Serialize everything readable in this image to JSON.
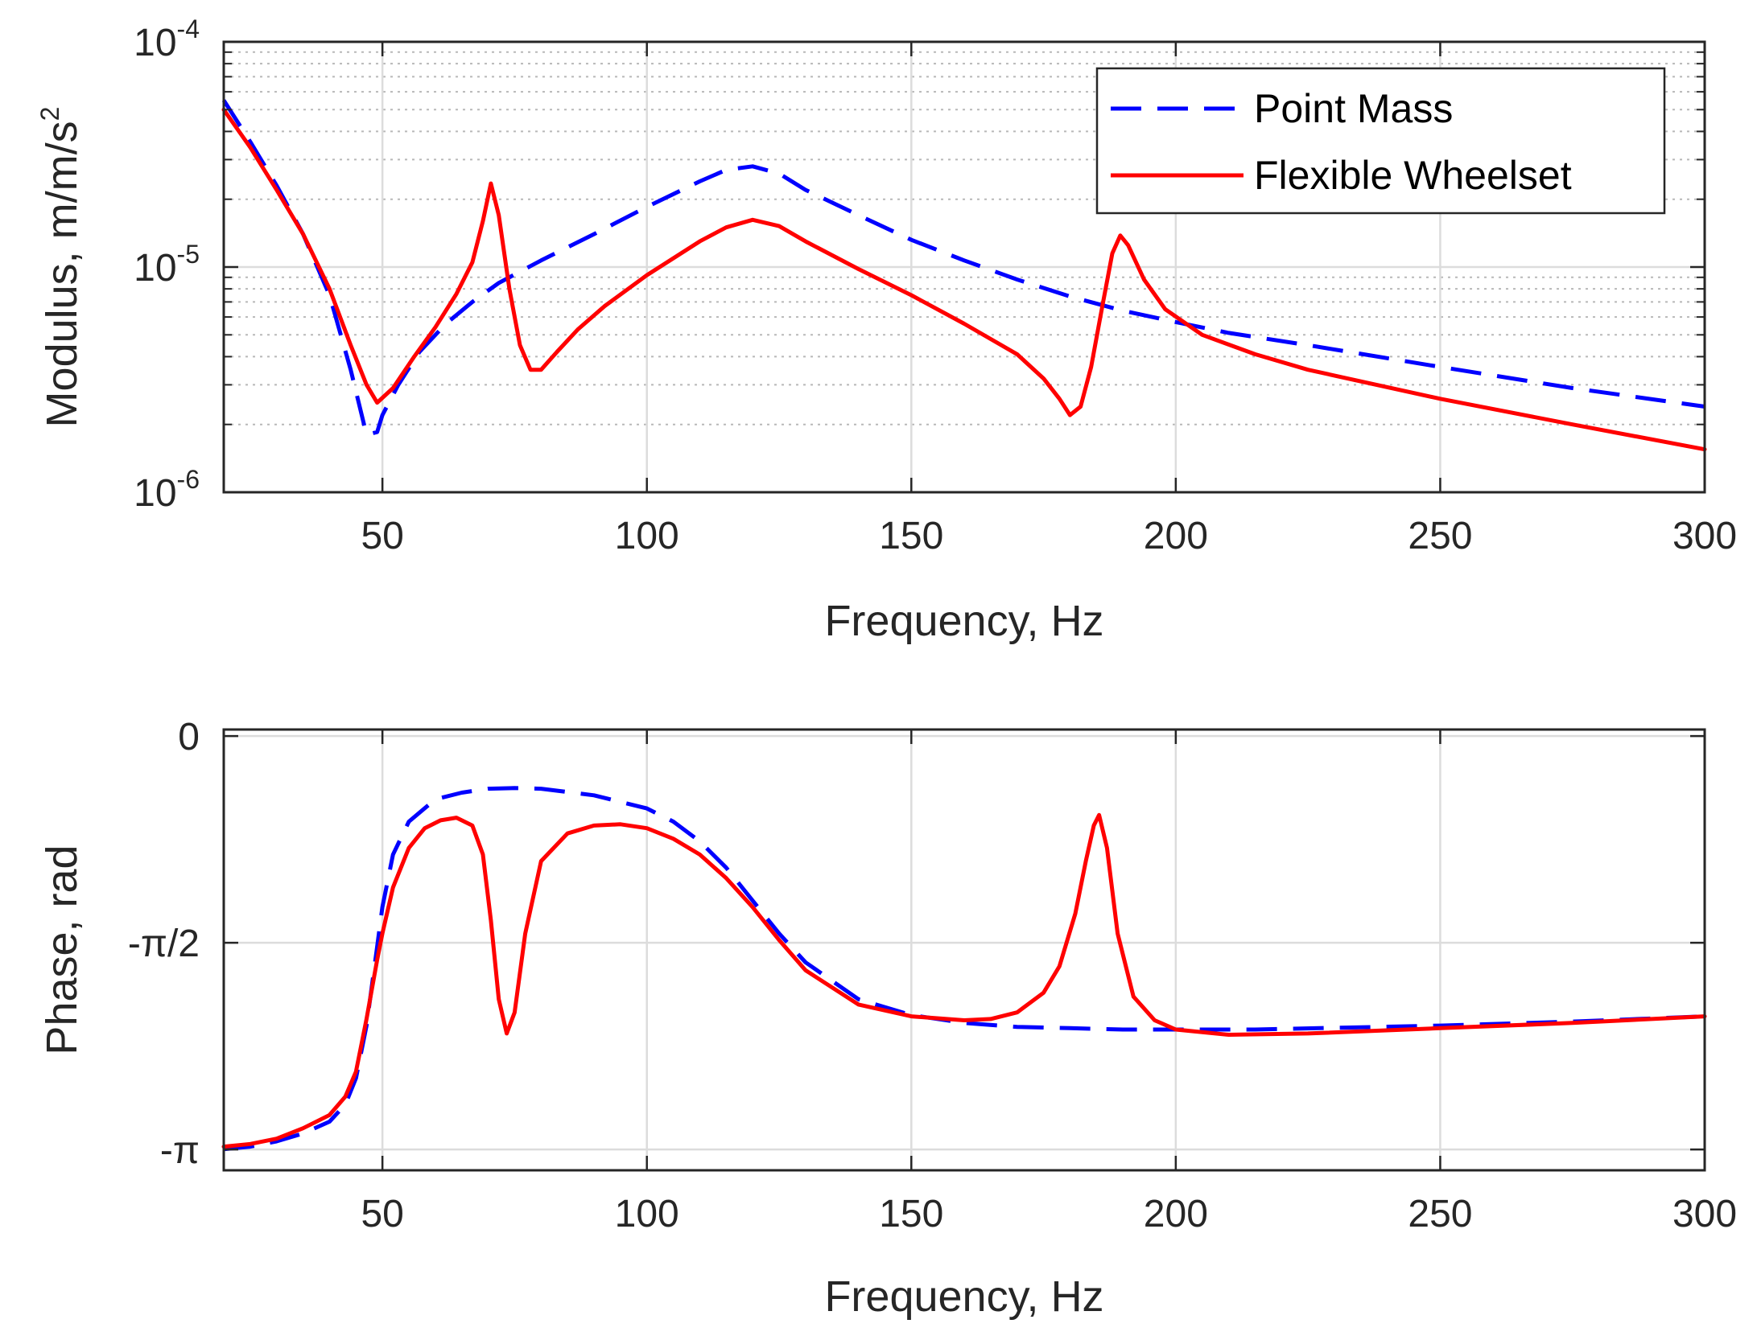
{
  "chart_data": [
    {
      "type": "line",
      "xscale": "linear",
      "yscale": "log",
      "xlabel": "Frequency, Hz",
      "ylabel": "Modulus, m/m/s",
      "ylabel_exponent": "2",
      "xlim": [
        20,
        300
      ],
      "ylim": [
        1e-06,
        0.0001
      ],
      "xticks": [
        50,
        100,
        150,
        200,
        250,
        300
      ],
      "yticks": [
        {
          "value": 1e-06,
          "base": "10",
          "exp": "-6"
        },
        {
          "value": 1e-05,
          "base": "10",
          "exp": "-5"
        },
        {
          "value": 0.0001,
          "base": "10",
          "exp": "-4"
        }
      ],
      "grid": true,
      "minor_grid": true,
      "legend": {
        "position": "top-right",
        "entries": [
          "Point Mass",
          "Flexible Wheelset"
        ]
      },
      "series": [
        {
          "name": "Point Mass",
          "color": "#0000ff",
          "style": "dashed",
          "x": [
            20,
            25,
            30,
            35,
            40,
            44,
            47,
            49,
            50,
            53,
            57,
            62,
            67,
            72,
            80,
            90,
            100,
            110,
            115,
            120,
            125,
            130,
            140,
            150,
            160,
            170,
            180,
            190,
            200,
            210,
            225,
            250,
            275,
            300
          ],
          "y": [
            5.5e-05,
            3.6e-05,
            2.3e-05,
            1.4e-05,
            7.5e-06,
            3.5e-06,
            1.8e-06,
            1.85e-06,
            2.2e-06,
            3e-06,
            4.2e-06,
            5.6e-06,
            7e-06,
            8.5e-06,
            1.07e-05,
            1.4e-05,
            1.85e-05,
            2.4e-05,
            2.7e-05,
            2.8e-05,
            2.6e-05,
            2.2e-05,
            1.7e-05,
            1.32e-05,
            1.07e-05,
            8.8e-06,
            7.4e-06,
            6.4e-06,
            5.7e-06,
            5.1e-06,
            4.5e-06,
            3.6e-06,
            2.9e-06,
            2.4e-06
          ]
        },
        {
          "name": "Flexible Wheelset",
          "color": "#ff0000",
          "style": "solid",
          "x": [
            20,
            25,
            30,
            35,
            40,
            44,
            47,
            49,
            52,
            56,
            60,
            64,
            67,
            69,
            70.5,
            72,
            74,
            76,
            78,
            80,
            83,
            87,
            92,
            100,
            110,
            115,
            120,
            125,
            130,
            140,
            150,
            160,
            170,
            175,
            178,
            180,
            182,
            184,
            186,
            188,
            189.5,
            191,
            194,
            198,
            205,
            215,
            225,
            250,
            275,
            300
          ],
          "y": [
            5e-05,
            3.4e-05,
            2.2e-05,
            1.4e-05,
            8e-06,
            4.5e-06,
            3e-06,
            2.5e-06,
            2.9e-06,
            4e-06,
            5.4e-06,
            7.6e-06,
            1.05e-05,
            1.6e-05,
            2.35e-05,
            1.7e-05,
            8e-06,
            4.5e-06,
            3.5e-06,
            3.5e-06,
            4.2e-06,
            5.3e-06,
            6.7e-06,
            9.2e-06,
            1.3e-05,
            1.5e-05,
            1.62e-05,
            1.52e-05,
            1.3e-05,
            9.8e-06,
            7.5e-06,
            5.6e-06,
            4.1e-06,
            3.2e-06,
            2.6e-06,
            2.2e-06,
            2.4e-06,
            3.6e-06,
            6.5e-06,
            1.15e-05,
            1.38e-05,
            1.25e-05,
            8.8e-06,
            6.5e-06,
            5e-06,
            4.1e-06,
            3.5e-06,
            2.6e-06,
            2e-06,
            1.55e-06
          ]
        }
      ]
    },
    {
      "type": "line",
      "xscale": "linear",
      "yscale": "linear",
      "xlabel": "Frequency, Hz",
      "ylabel": "Phase, rad",
      "xlim": [
        20,
        300
      ],
      "ylim": [
        -3.3,
        0.05
      ],
      "xticks": [
        50,
        100,
        150,
        200,
        250,
        300
      ],
      "yticks": [
        {
          "value": 0,
          "label": "0"
        },
        {
          "value": -1.5708,
          "label": "-π/2"
        },
        {
          "value": -3.1416,
          "label": "-π"
        }
      ],
      "grid": true,
      "minor_grid": false,
      "series": [
        {
          "name": "Point Mass",
          "color": "#0000ff",
          "style": "dashed",
          "x": [
            20,
            25,
            30,
            35,
            40,
            43,
            45,
            47,
            49,
            50,
            52,
            55,
            60,
            65,
            70,
            75,
            80,
            90,
            100,
            105,
            110,
            115,
            120,
            125,
            130,
            140,
            150,
            160,
            170,
            180,
            190,
            200,
            215,
            250,
            275,
            300
          ],
          "y": [
            -3.14,
            -3.12,
            -3.08,
            -3.02,
            -2.93,
            -2.8,
            -2.6,
            -2.2,
            -1.6,
            -1.3,
            -0.9,
            -0.65,
            -0.48,
            -0.43,
            -0.4,
            -0.395,
            -0.4,
            -0.45,
            -0.55,
            -0.65,
            -0.8,
            -1.0,
            -1.25,
            -1.5,
            -1.72,
            -2.0,
            -2.12,
            -2.18,
            -2.21,
            -2.22,
            -2.23,
            -2.23,
            -2.23,
            -2.2,
            -2.17,
            -2.13
          ]
        },
        {
          "name": "Flexible Wheelset",
          "color": "#ff0000",
          "style": "solid",
          "x": [
            20,
            25,
            30,
            35,
            40,
            43,
            45,
            47,
            49,
            50,
            52,
            55,
            58,
            61,
            64,
            67,
            69,
            70.5,
            72,
            73.5,
            75,
            77,
            80,
            85,
            90,
            95,
            100,
            105,
            110,
            115,
            120,
            125,
            130,
            140,
            150,
            160,
            165,
            170,
            175,
            178,
            181,
            183,
            184.5,
            185.5,
            187,
            189,
            192,
            196,
            200,
            210,
            225,
            250,
            275,
            300
          ],
          "y": [
            -3.12,
            -3.1,
            -3.06,
            -2.98,
            -2.88,
            -2.74,
            -2.55,
            -2.15,
            -1.7,
            -1.5,
            -1.15,
            -0.85,
            -0.7,
            -0.64,
            -0.62,
            -0.68,
            -0.9,
            -1.4,
            -2.0,
            -2.26,
            -2.1,
            -1.5,
            -0.95,
            -0.74,
            -0.68,
            -0.67,
            -0.7,
            -0.78,
            -0.9,
            -1.08,
            -1.3,
            -1.55,
            -1.78,
            -2.04,
            -2.13,
            -2.16,
            -2.15,
            -2.1,
            -1.95,
            -1.75,
            -1.35,
            -0.95,
            -0.68,
            -0.6,
            -0.85,
            -1.5,
            -1.98,
            -2.16,
            -2.23,
            -2.27,
            -2.26,
            -2.22,
            -2.18,
            -2.13
          ]
        }
      ]
    }
  ]
}
